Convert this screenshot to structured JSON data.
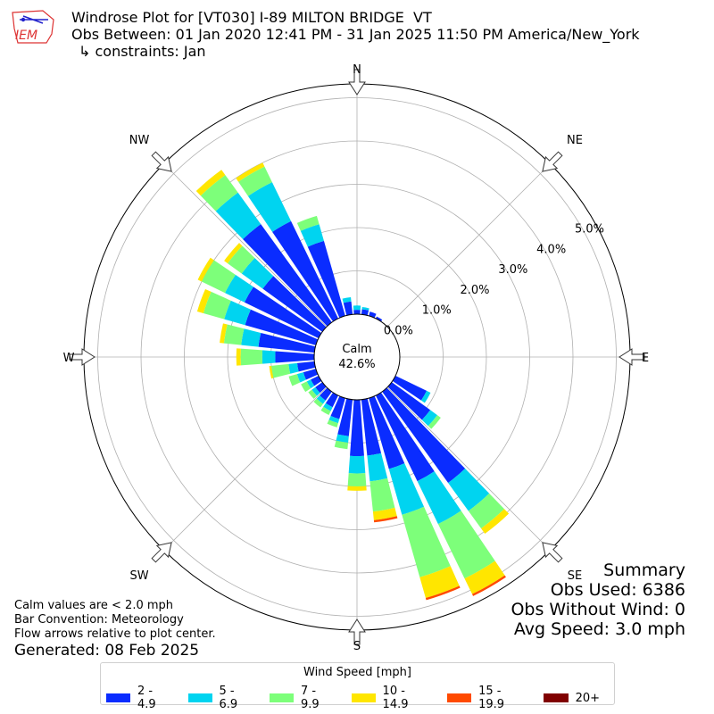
{
  "header": {
    "logo_text": "IEM",
    "line1": "Windrose Plot for [VT030] I-89 MILTON BRIDGE  VT",
    "line2": "Obs Between: 01 Jan 2020 12:41 PM - 31 Jan 2025 11:50 PM America/New_York",
    "line3": "↳ constraints: Jan"
  },
  "summary": {
    "title": "Summary",
    "obs_used": "Obs Used: 6386",
    "obs_without_wind": "Obs Without Wind: 0",
    "avg_speed": "Avg Speed: 3.0 mph"
  },
  "notes": {
    "calm_note": "Calm values are < 2.0 mph",
    "bar_convention": "Bar Convention: Meteorology",
    "flow_arrows": "Flow arrows relative to plot center.",
    "generated": "Generated: 08 Feb 2025"
  },
  "chart_data": {
    "type": "windrose",
    "calm_label": "Calm",
    "calm_value": "42.6%",
    "radial_ticks": [
      "0.0%",
      "1.0%",
      "2.0%",
      "3.0%",
      "4.0%",
      "5.0%"
    ],
    "radial_range": [
      0,
      5.5
    ],
    "directions_labeled": [
      "N",
      "NE",
      "E",
      "SE",
      "S",
      "SW",
      "W",
      "NW"
    ],
    "legend_title": "Wind Speed [mph]",
    "speed_bins": [
      {
        "label": "2 - 4.9",
        "color": "#0a2cff"
      },
      {
        "label": "5 - 6.9",
        "color": "#00d4f0"
      },
      {
        "label": "7 - 9.9",
        "color": "#7dff7a"
      },
      {
        "label": "10 - 14.9",
        "color": "#ffe600"
      },
      {
        "label": "15 - 19.9",
        "color": "#ff4a00"
      },
      {
        "label": "20+",
        "color": "#800000"
      }
    ],
    "sector_width_deg": 10,
    "sectors": [
      {
        "dir": 0,
        "values": [
          0.1,
          0.1,
          0.0,
          0,
          0,
          0
        ]
      },
      {
        "dir": 10,
        "values": [
          0.12,
          0.05,
          0.0,
          0,
          0,
          0
        ]
      },
      {
        "dir": 20,
        "values": [
          0.1,
          0.0,
          0.0,
          0,
          0,
          0
        ]
      },
      {
        "dir": 30,
        "values": [
          0.05,
          0.0,
          0.0,
          0,
          0,
          0
        ]
      },
      {
        "dir": 40,
        "values": [
          0.0,
          0.0,
          0.0,
          0,
          0,
          0
        ]
      },
      {
        "dir": 50,
        "values": [
          0.0,
          0.0,
          0.0,
          0,
          0,
          0
        ]
      },
      {
        "dir": 60,
        "values": [
          0.0,
          0.0,
          0.0,
          0,
          0,
          0
        ]
      },
      {
        "dir": 70,
        "values": [
          0.0,
          0.0,
          0.0,
          0,
          0,
          0
        ]
      },
      {
        "dir": 80,
        "values": [
          0.0,
          0.0,
          0.0,
          0,
          0,
          0
        ]
      },
      {
        "dir": 90,
        "values": [
          0.0,
          0.0,
          0.0,
          0,
          0,
          0
        ]
      },
      {
        "dir": 100,
        "values": [
          0.0,
          0.0,
          0.0,
          0,
          0,
          0
        ]
      },
      {
        "dir": 110,
        "values": [
          0.0,
          0.0,
          0.0,
          0,
          0,
          0
        ]
      },
      {
        "dir": 120,
        "values": [
          0.8,
          0.1,
          0.0,
          0,
          0,
          0
        ]
      },
      {
        "dir": 130,
        "values": [
          1.1,
          0.2,
          0.1,
          0,
          0,
          0
        ]
      },
      {
        "dir": 140,
        "values": [
          2.6,
          0.8,
          0.5,
          0.15,
          0,
          0
        ]
      },
      {
        "dir": 150,
        "values": [
          2.2,
          1.1,
          1.4,
          0.4,
          0.05,
          0
        ]
      },
      {
        "dir": 160,
        "values": [
          1.7,
          1.1,
          1.5,
          0.5,
          0.05,
          0
        ]
      },
      {
        "dir": 170,
        "values": [
          1.3,
          0.6,
          0.7,
          0.2,
          0.05,
          0
        ]
      },
      {
        "dir": 180,
        "values": [
          1.3,
          0.4,
          0.3,
          0.1,
          0,
          0
        ]
      },
      {
        "dir": 190,
        "values": [
          0.85,
          0.15,
          0.15,
          0,
          0,
          0
        ]
      },
      {
        "dir": 200,
        "values": [
          0.5,
          0.1,
          0.1,
          0,
          0,
          0
        ]
      },
      {
        "dir": 210,
        "values": [
          0.3,
          0.1,
          0.1,
          0,
          0,
          0
        ]
      },
      {
        "dir": 220,
        "values": [
          0.25,
          0.1,
          0.1,
          0,
          0,
          0
        ]
      },
      {
        "dir": 230,
        "values": [
          0.2,
          0.1,
          0.1,
          0,
          0,
          0
        ]
      },
      {
        "dir": 240,
        "values": [
          0.2,
          0.1,
          0.15,
          0,
          0,
          0
        ]
      },
      {
        "dir": 250,
        "values": [
          0.3,
          0.15,
          0.2,
          0,
          0,
          0
        ]
      },
      {
        "dir": 260,
        "values": [
          0.4,
          0.2,
          0.4,
          0.05,
          0,
          0
        ]
      },
      {
        "dir": 270,
        "values": [
          0.9,
          0.3,
          0.5,
          0.1,
          0,
          0
        ]
      },
      {
        "dir": 280,
        "values": [
          1.3,
          0.4,
          0.4,
          0.1,
          0,
          0
        ]
      },
      {
        "dir": 290,
        "values": [
          1.7,
          0.5,
          0.5,
          0.15,
          0,
          0
        ]
      },
      {
        "dir": 300,
        "values": [
          1.9,
          0.5,
          0.6,
          0.1,
          0,
          0
        ]
      },
      {
        "dir": 310,
        "values": [
          1.7,
          0.6,
          0.4,
          0.1,
          0,
          0
        ]
      },
      {
        "dir": 320,
        "values": [
          2.8,
          0.9,
          0.5,
          0.15,
          0,
          0
        ]
      },
      {
        "dir": 330,
        "values": [
          2.5,
          1.0,
          0.4,
          0.1,
          0,
          0
        ]
      },
      {
        "dir": 340,
        "values": [
          1.8,
          0.4,
          0.2,
          0,
          0,
          0
        ]
      },
      {
        "dir": 350,
        "values": [
          0.3,
          0.1,
          0.0,
          0,
          0,
          0
        ]
      }
    ]
  }
}
